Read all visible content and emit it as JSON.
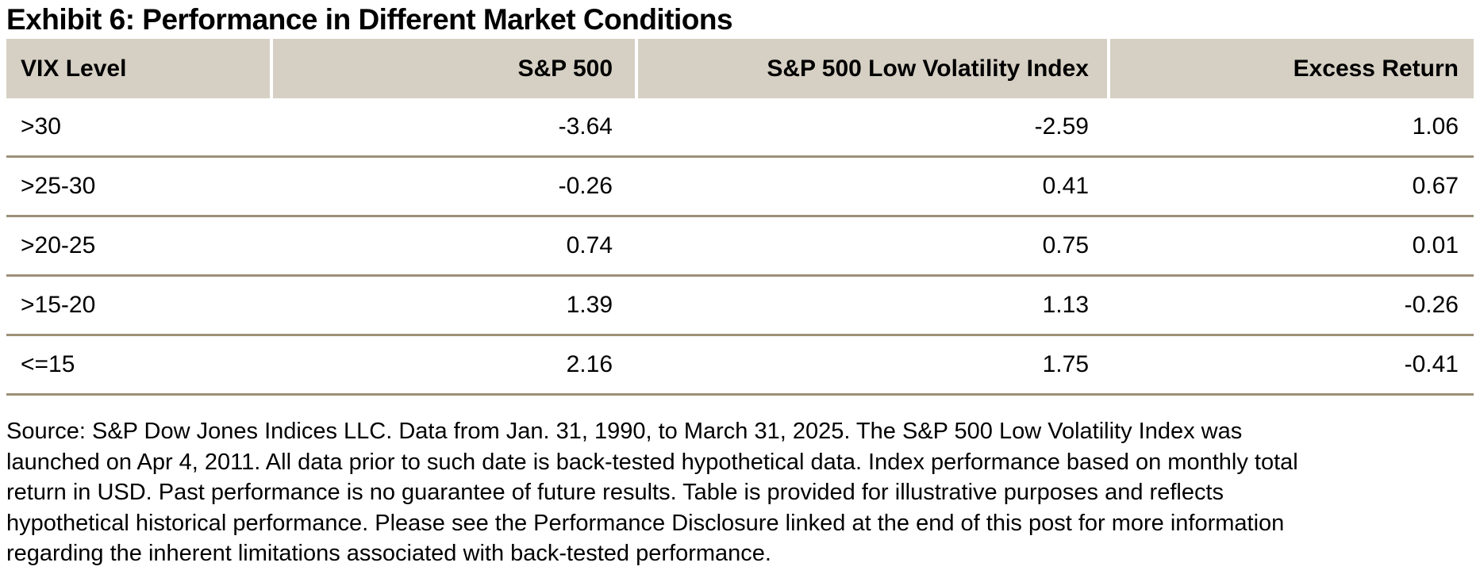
{
  "title": "Exhibit 6: Performance in Different Market Conditions",
  "table": {
    "headers": [
      "VIX Level",
      "S&P 500",
      "S&P 500 Low Volatility Index",
      "Excess Return"
    ],
    "rows": [
      [
        ">30",
        "-3.64",
        "-2.59",
        "1.06"
      ],
      [
        ">25-30",
        "-0.26",
        "0.41",
        "0.67"
      ],
      [
        ">20-25",
        "0.74",
        "0.75",
        "0.01"
      ],
      [
        ">15-20",
        "1.39",
        "1.13",
        "-0.26"
      ],
      [
        "<=15",
        "2.16",
        "1.75",
        "-0.41"
      ]
    ]
  },
  "chart_data": {
    "type": "table",
    "title": "Exhibit 6: Performance in Different Market Conditions",
    "columns": [
      "VIX Level",
      "S&P 500",
      "S&P 500 Low Volatility Index",
      "Excess Return"
    ],
    "rows": [
      {
        "vix_level": ">30",
        "sp500": -3.64,
        "sp500_low_volatility_index": -2.59,
        "excess_return": 1.06
      },
      {
        "vix_level": ">25-30",
        "sp500": -0.26,
        "sp500_low_volatility_index": 0.41,
        "excess_return": 0.67
      },
      {
        "vix_level": ">20-25",
        "sp500": 0.74,
        "sp500_low_volatility_index": 0.75,
        "excess_return": 0.01
      },
      {
        "vix_level": ">15-20",
        "sp500": 1.39,
        "sp500_low_volatility_index": 1.13,
        "excess_return": -0.26
      },
      {
        "vix_level": "<=15",
        "sp500": 2.16,
        "sp500_low_volatility_index": 1.75,
        "excess_return": -0.41
      }
    ]
  },
  "footnote": {
    "lines": [
      "Source: S&P Dow Jones Indices LLC. Data from Jan. 31, 1990, to March 31, 2025. The S&P 500 Low Volatility Index was",
      "launched on Apr 4, 2011. All data prior to such date is back-tested hypothetical data. Index performance based on monthly total",
      "return in USD. Past performance is no guarantee of future results. Table is provided for illustrative purposes and reflects",
      "hypothetical historical performance. Please see the Performance Disclosure linked at the end of this post for more information",
      "regarding the inherent limitations associated with back-tested performance."
    ]
  },
  "colors": {
    "header_bg": "#d6d0c4",
    "row_divider": "#9c9078",
    "text": "#000000",
    "background": "#ffffff"
  }
}
